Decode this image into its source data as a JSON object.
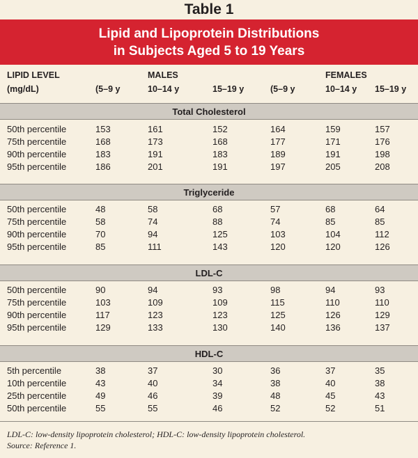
{
  "table_label": "Table 1",
  "title_line1": "Lipid and Lipoprotein Distributions",
  "title_line2": "in Subjects Aged 5 to 19 Years",
  "header": {
    "lipid_level": "LIPID LEVEL",
    "units": "(mg/dL)",
    "males": "MALES",
    "females": "FEMALES",
    "age_5_9": "(5–9 y",
    "age_10_14": "10–14 y",
    "age_15_19": "15–19 y"
  },
  "sections": [
    {
      "title": "Total Cholesterol",
      "rows": [
        [
          "50th percentile",
          "153",
          "161",
          "152",
          "164",
          "159",
          "157"
        ],
        [
          "75th percentile",
          "168",
          "173",
          "168",
          "177",
          "171",
          "176"
        ],
        [
          "90th percentile",
          "183",
          "191",
          "183",
          "189",
          "191",
          "198"
        ],
        [
          "95th percentile",
          "186",
          "201",
          "191",
          "197",
          "205",
          "208"
        ]
      ]
    },
    {
      "title": "Triglyceride",
      "rows": [
        [
          "50th percentile",
          "48",
          "58",
          "68",
          "57",
          "68",
          "64"
        ],
        [
          "75th percentile",
          "58",
          "74",
          "88",
          "74",
          "85",
          "85"
        ],
        [
          "90th percentile",
          "70",
          "94",
          "125",
          "103",
          "104",
          "112"
        ],
        [
          "95th percentile",
          "85",
          "111",
          "143",
          "120",
          "120",
          "126"
        ]
      ]
    },
    {
      "title": "LDL-C",
      "rows": [
        [
          "50th percentile",
          "90",
          "94",
          "93",
          "98",
          "94",
          "93"
        ],
        [
          "75th percentile",
          "103",
          "109",
          "109",
          "115",
          "110",
          "110"
        ],
        [
          "90th percentile",
          "117",
          "123",
          "123",
          "125",
          "126",
          "129"
        ],
        [
          "95th percentile",
          "129",
          "133",
          "130",
          "140",
          "136",
          "137"
        ]
      ]
    },
    {
      "title": "HDL-C",
      "rows": [
        [
          "5th percentile",
          "38",
          "37",
          "30",
          "36",
          "37",
          "35"
        ],
        [
          "10th percentile",
          "43",
          "40",
          "34",
          "38",
          "40",
          "38"
        ],
        [
          "25th percentile",
          "49",
          "46",
          "39",
          "48",
          "45",
          "43"
        ],
        [
          "50th percentile",
          "55",
          "55",
          "46",
          "52",
          "52",
          "51"
        ]
      ]
    }
  ],
  "footnote_line1": "LDL-C: low-density lipoprotein cholesterol; HDL-C: low-density lipoprotein cholesterol.",
  "footnote_line2": "Source: Reference 1.",
  "colors": {
    "background": "#f7f0e1",
    "title_band": "#d52330",
    "section_bar": "#cfcac2"
  }
}
